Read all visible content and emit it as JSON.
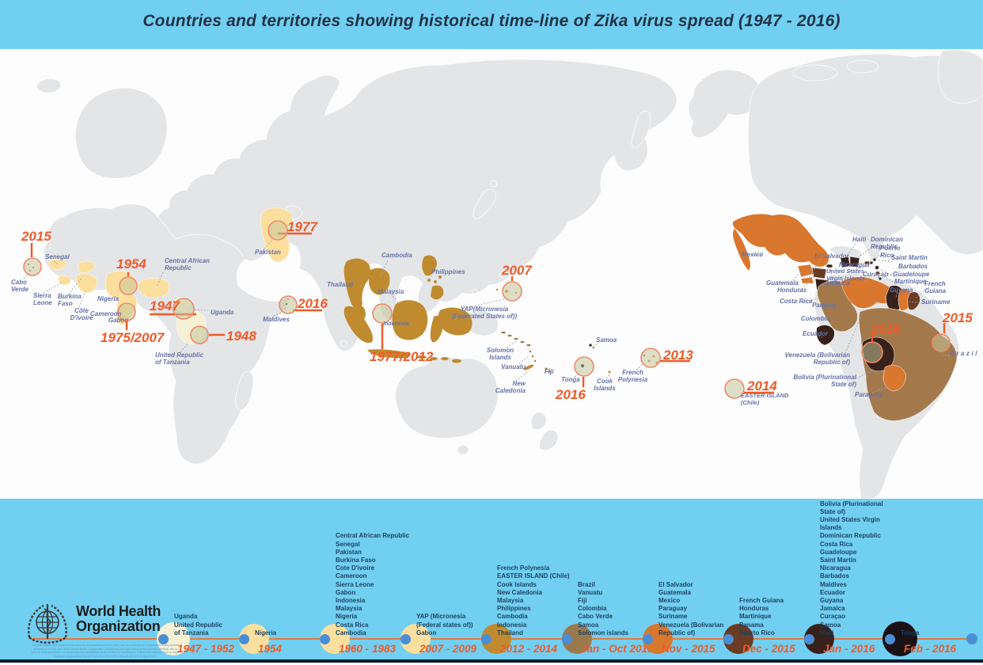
{
  "title": "Countries and territories showing historical time-line of Zika virus spread (1947 - 2016)",
  "who": {
    "name_line1": "World Health",
    "name_line2": "Organization",
    "disclaimer": "The boundaries and names shown and the designations used on this map do not imply the expression of any opinion whatsoever on the part of the World Health Organization concerning the legal status of any country, territory, city or area or of its authorities, or concerning the delimitation of its frontiers or boundaries. Dotted and dashed lines on maps represent approximate border lines for which there may not yet be full agreement."
  },
  "palette": {
    "header_bg": "#71cff2",
    "era_1947_1952": "#f6f0d5",
    "era_1954_to_2009": "#fbdf9e",
    "era_2012_2014": "#bf8b2e",
    "era_jan_oct_2015": "#9a7a4d",
    "era_nov_2015": "#d9772e",
    "era_dec_2015": "#6b3b23",
    "era_jan_2016": "#38211a",
    "era_feb_2016": "#191114",
    "timeline_line": "#e8793f",
    "node_blue": "#4a8ed6",
    "year_text": "#f05a28",
    "map_label_text": "#6672a8",
    "list_text": "#1d3f5e",
    "land_gray": "#e4e5e7"
  },
  "map": {
    "year_markers": [
      "2015",
      "1954",
      "1947",
      "1948",
      "1975/2007",
      "1977",
      "2016",
      "1977/2012",
      "2007",
      "2016",
      "2013",
      "2014",
      "2016",
      "2015"
    ],
    "labels": [
      "Cabo Verde",
      "Senegal",
      "Sierra Leone",
      "Burkina Faso",
      "Côte D'ivoire",
      "Nigeria",
      "Cameroon",
      "Gabon",
      "Central African Republic",
      "Uganda",
      "United Republic of Tanzania",
      "Pakistan",
      "Maldives",
      "Thailand",
      "Cambodia",
      "Malaysia",
      "Philippines",
      "Indonesia",
      "YAP(Micronesia (Federated States of))",
      "Solomon Islands",
      "Vanuatu",
      "New Caledonia",
      "Fiji",
      "Tonga",
      "Samoa",
      "Cook Islands",
      "French Polynesia",
      "Mexico",
      "El Salvador",
      "Haiti",
      "Dominican Republic",
      "Puerto Rico",
      "Saint Martin",
      "Barbados",
      "Nicaragua",
      "United States Virgin Islands",
      "Curaçao",
      "Guadeloupe",
      "Martinique",
      "Jamaica",
      "Guatemala",
      "Honduras",
      "French Guiana",
      "Guyana",
      "Costa Rica",
      "Panama",
      "Suriname",
      "Colombia",
      "Ecuador",
      "Venezuela (Bolivarian Republic of)",
      "Bolivia (Plurinational State of)",
      "Paraguay",
      "EASTER ISLAND (Chile)",
      "Brazil"
    ]
  },
  "timeline": {
    "eras": [
      {
        "period": "1947 - 1952",
        "color": "#f6f0d5",
        "countries": [
          "Uganda",
          "United Republic of Tanzania"
        ]
      },
      {
        "period": "1954",
        "color": "#fbdf9e",
        "countries": [
          "Nigeria"
        ]
      },
      {
        "period": "1960 - 1983",
        "color": "#fbdf9e",
        "countries": [
          "Central African Republic",
          "Senegal",
          "Pakistan",
          "Burkina Faso",
          "Cote D'ivoire",
          "Cameroon",
          "Sierra Leone",
          "Gabon",
          "Indonesia",
          "Malaysia",
          "Nigeria",
          "Costa Rica",
          "Cambodia"
        ]
      },
      {
        "period": "2007 - 2009",
        "color": "#fbdf9e",
        "countries": [
          "YAP (Micronesia (Federal states of))",
          "Gabon"
        ]
      },
      {
        "period": "2012 - 2014",
        "color": "#bf8b2e",
        "countries": [
          "French Polynesia",
          "EASTER ISLAND (Chile)",
          "Cook Islands",
          "New Caledonia",
          "Malaysia",
          "Philippines",
          "Cambodia",
          "Indonesia",
          "Thailand"
        ]
      },
      {
        "period": "Jan - Oct 2015",
        "color": "#9a7a4d",
        "countries": [
          "Brazil",
          "Vanuatu",
          "Fiji",
          "Colombia",
          "Cabo Verde",
          "Samoa",
          "Solomon islands"
        ]
      },
      {
        "period": "Nov - 2015",
        "color": "#d9772e",
        "countries": [
          "El Salvador",
          "Guatemala",
          "Mexico",
          "Paraguay",
          "Suriname",
          "Venezuela (Bolivarian Republic of)"
        ]
      },
      {
        "period": "Dec - 2015",
        "color": "#6b3b23",
        "countries": [
          "French Guiana",
          "Honduras",
          "Martinique",
          "Panama",
          "Puerto Rico"
        ]
      },
      {
        "period": "Jan - 2016",
        "color": "#38211a",
        "countries": [
          "Bolivia (Plurinational State of)",
          "United States Virgin Islands",
          "Dominican Republic",
          "Costa Rica",
          "Guadeloupe",
          "Saint Martin",
          "Nicaragua",
          "Barbados",
          "Maldives",
          "Ecuador",
          "Guyana",
          "Jamaica",
          "Curaçao",
          "Samoa",
          "Haiti"
        ]
      },
      {
        "period": "Feb - 2016",
        "color": "#191114",
        "countries": [
          "Tonga"
        ]
      }
    ]
  }
}
